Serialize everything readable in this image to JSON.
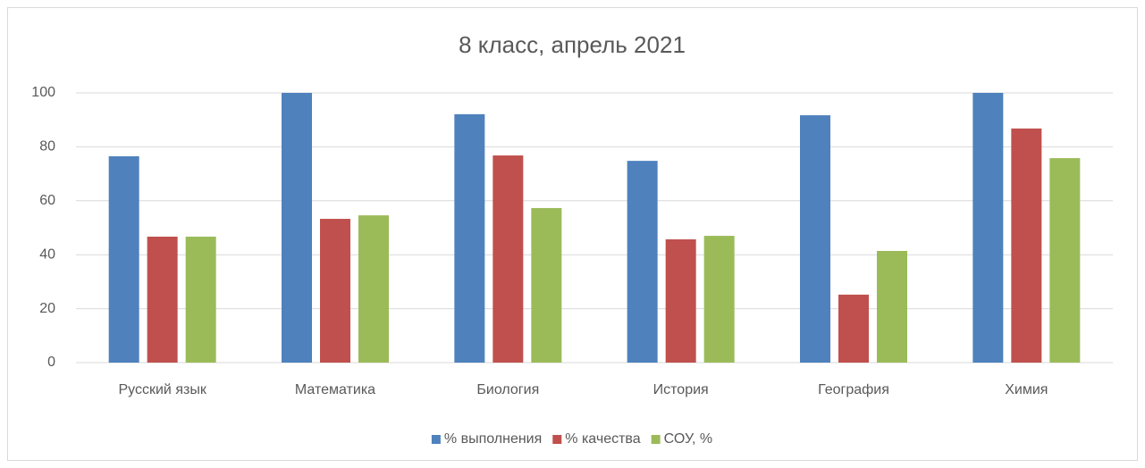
{
  "chart_data": {
    "type": "bar",
    "title": "8 класс, апрель 2021",
    "categories": [
      "Русский язык",
      "Математика",
      "Биология",
      "История",
      "География",
      "Химия"
    ],
    "series": [
      {
        "name": "% выполнения",
        "color": "#4f81bd",
        "values": [
          76.5,
          100,
          92.1,
          74.8,
          91.7,
          100
        ]
      },
      {
        "name": "% качества",
        "color": "#c0504d",
        "values": [
          46.7,
          53.3,
          76.8,
          45.7,
          25.2,
          86.8
        ]
      },
      {
        "name": "СОУ, %",
        "color": "#9bbb59",
        "values": [
          46.7,
          54.6,
          57.3,
          47.0,
          41.4,
          75.8
        ]
      }
    ],
    "ylim": [
      0,
      100
    ],
    "yticks": [
      0,
      20,
      40,
      60,
      80,
      100
    ],
    "grid": true,
    "legend": "bottom"
  }
}
